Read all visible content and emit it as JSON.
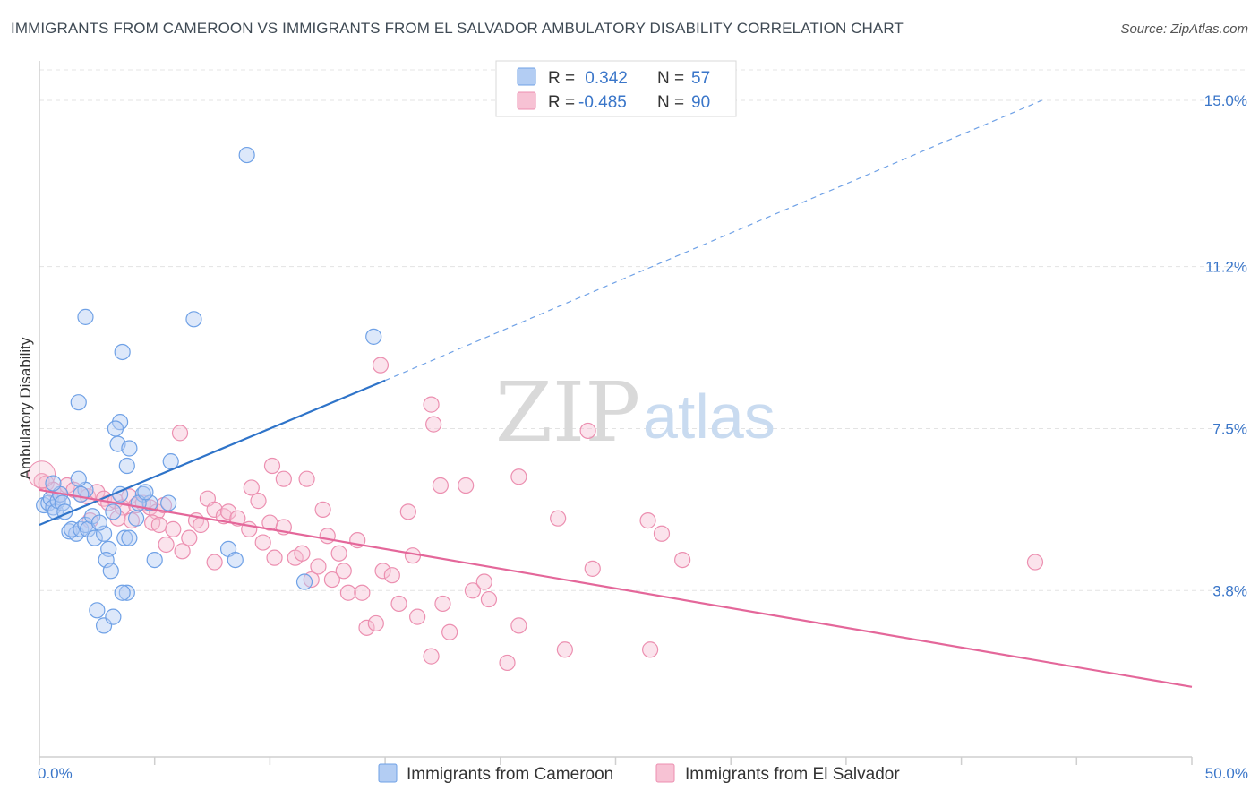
{
  "title": "IMMIGRANTS FROM CAMEROON VS IMMIGRANTS FROM EL SALVADOR AMBULATORY DISABILITY CORRELATION CHART",
  "source": "Source: ZipAtlas.com",
  "watermark": {
    "zip": "ZIP",
    "atlas": "atlas"
  },
  "colors": {
    "blue": "#6fa1e6",
    "blue_fill": "#b3cdf3",
    "blue_line": "#2f74c9",
    "pink": "#ec8fb0",
    "pink_fill": "#f7c2d4",
    "pink_line": "#e4679a",
    "tick_blue": "#3a76c9",
    "grid": "#e3e3e3"
  },
  "legend": {
    "blue": {
      "r_label": "R = ",
      "r_value": " 0.342",
      "n_label": "N = ",
      "n_value": "57"
    },
    "pink": {
      "r_label": "R = ",
      "r_value": "-0.485",
      "n_label": "N = ",
      "n_value": "90"
    }
  },
  "chart_data": {
    "type": "scatter",
    "title": "IMMIGRANTS FROM CAMEROON VS IMMIGRANTS FROM EL SALVADOR AMBULATORY DISABILITY CORRELATION CHART",
    "xlabel": "",
    "ylabel": "Ambulatory Disability",
    "xlim": [
      0,
      50
    ],
    "ylim": [
      0,
      15.9
    ],
    "x_tick_labels": [
      "0.0%",
      "50.0%"
    ],
    "y_ticks": [
      3.8,
      7.5,
      11.2,
      15.0
    ],
    "y_tick_labels": [
      "3.8%",
      "7.5%",
      "11.2%",
      "15.0%"
    ],
    "grid": "horizontal dashed",
    "legend_position": "top-center",
    "series": [
      {
        "name": "Immigrants from Cameroon",
        "color": "#6fa1e6",
        "trend": {
          "x": [
            0,
            15
          ],
          "y": [
            5.3,
            8.6
          ],
          "extended_dashed_to": [
            43.5,
            15.0
          ]
        },
        "points": [
          [
            0.2,
            5.75
          ],
          [
            0.4,
            5.8
          ],
          [
            0.5,
            5.9
          ],
          [
            0.6,
            5.7
          ],
          [
            0.7,
            5.6
          ],
          [
            0.8,
            5.85
          ],
          [
            0.9,
            6.0
          ],
          [
            1.0,
            5.8
          ],
          [
            1.1,
            5.6
          ],
          [
            0.6,
            6.25
          ],
          [
            1.3,
            5.15
          ],
          [
            1.6,
            5.1
          ],
          [
            1.4,
            5.2
          ],
          [
            1.8,
            5.2
          ],
          [
            2.0,
            5.3
          ],
          [
            2.1,
            5.2
          ],
          [
            2.4,
            5.0
          ],
          [
            2.8,
            5.1
          ],
          [
            2.0,
            6.1
          ],
          [
            1.8,
            6.0
          ],
          [
            2.3,
            5.5
          ],
          [
            2.6,
            5.35
          ],
          [
            3.0,
            4.75
          ],
          [
            3.2,
            5.6
          ],
          [
            3.5,
            6.0
          ],
          [
            3.7,
            5.0
          ],
          [
            3.9,
            5.0
          ],
          [
            4.2,
            5.45
          ],
          [
            4.5,
            6.0
          ],
          [
            4.8,
            5.8
          ],
          [
            5.0,
            4.5
          ],
          [
            2.9,
            4.5
          ],
          [
            3.1,
            4.25
          ],
          [
            3.8,
            3.75
          ],
          [
            3.6,
            3.75
          ],
          [
            2.5,
            3.35
          ],
          [
            2.8,
            3.0
          ],
          [
            3.2,
            3.2
          ],
          [
            1.7,
            6.35
          ],
          [
            5.6,
            5.8
          ],
          [
            4.3,
            5.8
          ],
          [
            4.6,
            6.05
          ],
          [
            3.5,
            7.65
          ],
          [
            3.3,
            7.5
          ],
          [
            3.4,
            7.15
          ],
          [
            3.9,
            7.05
          ],
          [
            3.8,
            6.65
          ],
          [
            5.7,
            6.75
          ],
          [
            1.7,
            8.1
          ],
          [
            2.0,
            10.05
          ],
          [
            3.6,
            9.25
          ],
          [
            6.7,
            10.0
          ],
          [
            9.0,
            13.75
          ],
          [
            14.5,
            9.6
          ],
          [
            8.2,
            4.75
          ],
          [
            8.5,
            4.5
          ],
          [
            11.5,
            4.0
          ]
        ]
      },
      {
        "name": "Immigrants from El Salvador",
        "color": "#ec8fb0",
        "trend": {
          "x": [
            0,
            50
          ],
          "y": [
            6.1,
            1.6
          ]
        },
        "points": [
          [
            0.1,
            6.3
          ],
          [
            0.3,
            6.25
          ],
          [
            0.6,
            6.1
          ],
          [
            0.9,
            6.0
          ],
          [
            1.2,
            6.2
          ],
          [
            1.5,
            6.1
          ],
          [
            1.8,
            6.0
          ],
          [
            2.1,
            5.95
          ],
          [
            2.5,
            6.05
          ],
          [
            2.8,
            5.9
          ],
          [
            3.0,
            5.8
          ],
          [
            3.3,
            5.85
          ],
          [
            3.6,
            5.7
          ],
          [
            3.9,
            5.95
          ],
          [
            4.2,
            5.75
          ],
          [
            4.5,
            5.8
          ],
          [
            4.8,
            5.7
          ],
          [
            5.1,
            5.6
          ],
          [
            5.4,
            5.75
          ],
          [
            2.2,
            5.4
          ],
          [
            3.4,
            5.45
          ],
          [
            4.0,
            5.4
          ],
          [
            4.9,
            5.35
          ],
          [
            5.2,
            5.3
          ],
          [
            5.8,
            5.2
          ],
          [
            6.5,
            5.0
          ],
          [
            5.5,
            4.85
          ],
          [
            6.2,
            4.7
          ],
          [
            6.8,
            5.4
          ],
          [
            7.0,
            5.3
          ],
          [
            7.3,
            5.9
          ],
          [
            7.6,
            5.65
          ],
          [
            8.0,
            5.5
          ],
          [
            8.2,
            5.6
          ],
          [
            8.6,
            5.45
          ],
          [
            9.1,
            5.2
          ],
          [
            9.5,
            5.85
          ],
          [
            9.7,
            4.9
          ],
          [
            10.0,
            5.35
          ],
          [
            10.2,
            4.55
          ],
          [
            10.6,
            5.25
          ],
          [
            11.1,
            4.55
          ],
          [
            11.4,
            4.65
          ],
          [
            11.8,
            4.05
          ],
          [
            12.1,
            4.35
          ],
          [
            12.5,
            5.05
          ],
          [
            12.7,
            4.05
          ],
          [
            13.0,
            4.65
          ],
          [
            13.2,
            4.25
          ],
          [
            13.4,
            3.75
          ],
          [
            13.8,
            4.95
          ],
          [
            14.0,
            3.75
          ],
          [
            14.2,
            2.95
          ],
          [
            14.6,
            3.05
          ],
          [
            14.9,
            4.25
          ],
          [
            15.3,
            4.15
          ],
          [
            15.6,
            3.5
          ],
          [
            16.0,
            5.6
          ],
          [
            16.2,
            4.6
          ],
          [
            16.4,
            3.2
          ],
          [
            17.0,
            2.3
          ],
          [
            17.5,
            3.5
          ],
          [
            17.8,
            2.85
          ],
          [
            18.8,
            3.8
          ],
          [
            19.3,
            4.0
          ],
          [
            19.5,
            3.6
          ],
          [
            20.3,
            2.15
          ],
          [
            20.8,
            3.0
          ],
          [
            22.5,
            5.45
          ],
          [
            22.8,
            2.45
          ],
          [
            24.0,
            4.3
          ],
          [
            26.5,
            2.45
          ],
          [
            7.6,
            4.45
          ],
          [
            9.2,
            6.15
          ],
          [
            10.1,
            6.65
          ],
          [
            10.6,
            6.35
          ],
          [
            11.6,
            6.35
          ],
          [
            12.3,
            5.65
          ],
          [
            14.8,
            8.95
          ],
          [
            17.0,
            8.05
          ],
          [
            17.1,
            7.6
          ],
          [
            17.4,
            6.2
          ],
          [
            18.5,
            6.2
          ],
          [
            20.8,
            6.4
          ],
          [
            23.8,
            7.45
          ],
          [
            26.4,
            5.4
          ],
          [
            27.0,
            5.1
          ],
          [
            27.9,
            4.5
          ],
          [
            43.2,
            4.45
          ],
          [
            6.1,
            7.4
          ]
        ]
      }
    ]
  },
  "bottom_legend": {
    "blue_label": "Immigrants from Cameroon",
    "pink_label": "Immigrants from El Salvador"
  }
}
